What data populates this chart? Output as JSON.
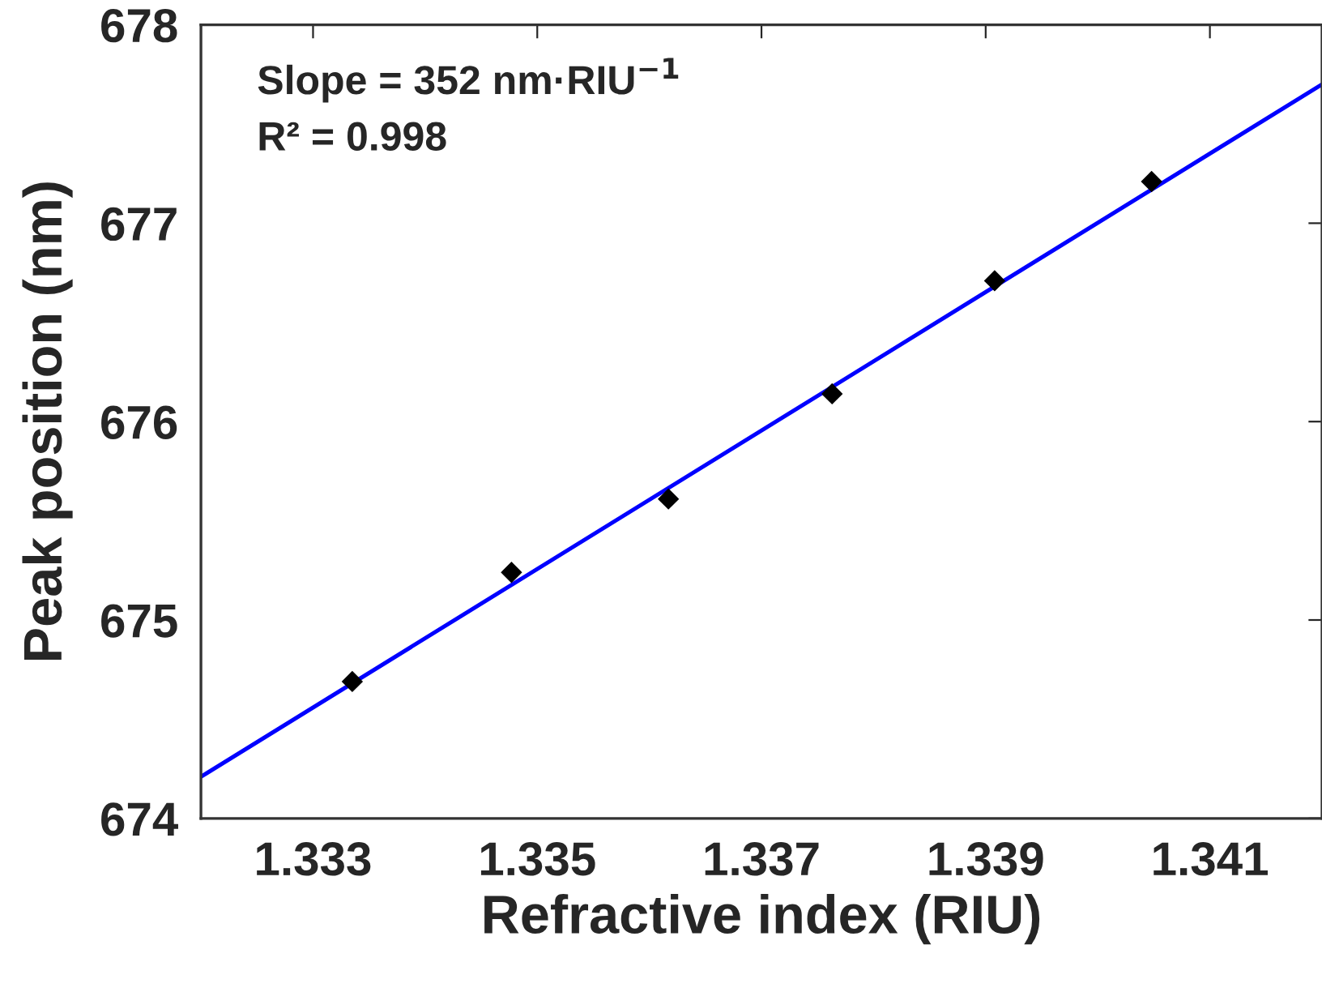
{
  "chart_data": {
    "type": "scatter",
    "xlabel": "Refractive index (RIU)",
    "ylabel": "Peak position (nm)",
    "xlim": [
      1.332,
      1.342
    ],
    "xticks": [
      1.333,
      1.335,
      1.337,
      1.339,
      1.341
    ],
    "ylim": [
      674,
      678
    ],
    "yticks": [
      674,
      675,
      676,
      677,
      678
    ],
    "grid": false,
    "legend": false,
    "series": [
      {
        "marker": "diamond",
        "color": "#000000",
        "x": [
          1.33335,
          1.33477,
          1.33617,
          1.33763,
          1.33908,
          1.34048
        ],
        "values": [
          674.69,
          675.24,
          675.61,
          676.14,
          676.71,
          677.21
        ]
      },
      {
        "type": "line",
        "line_style": "solid",
        "marker": "none",
        "color": "#0000ff",
        "x": [
          1.332,
          1.342
        ],
        "values": [
          674.21,
          677.7
        ]
      }
    ],
    "annotations": [
      "Slope = 352 nm·RIU$^{−1}$",
      "R² = 0.998"
    ]
  }
}
